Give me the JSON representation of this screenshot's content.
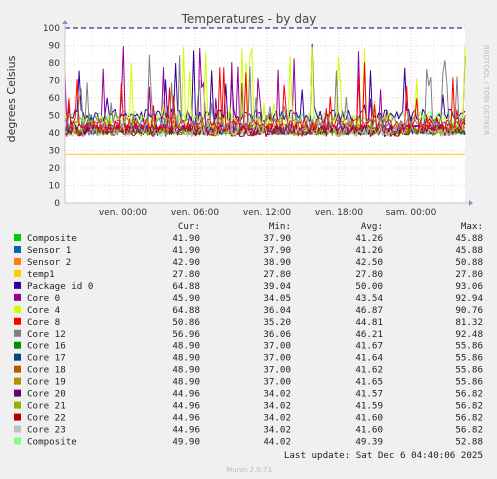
{
  "chart_data": {
    "type": "line",
    "title": "Temperatures - by day",
    "ylabel": "degrees Celsius",
    "ylim": [
      0,
      100
    ],
    "yticks": [
      "0",
      "10",
      "20",
      "30",
      "40",
      "50",
      "60",
      "70",
      "80",
      "90",
      "100"
    ],
    "xticks": [
      "ven. 00:00",
      "ven. 06:00",
      "ven. 12:00",
      "ven. 18:00",
      "sam. 00:00"
    ],
    "grid": true,
    "warning_line": 100,
    "side_label": "RRDTOOL / TOBI OETIKER",
    "legend_header": {
      "cur": "Cur:",
      "min": "Min:",
      "avg": "Avg:",
      "max": "Max:"
    },
    "series": [
      {
        "name": "Composite",
        "color": "#00cc00",
        "cur": "41.90",
        "min": "37.90",
        "avg": "41.26",
        "max": "45.88"
      },
      {
        "name": "Sensor 1",
        "color": "#0066b3",
        "cur": "41.90",
        "min": "37.90",
        "avg": "41.26",
        "max": "45.88"
      },
      {
        "name": "Sensor 2",
        "color": "#ff8000",
        "cur": "42.90",
        "min": "38.90",
        "avg": "42.50",
        "max": "50.88"
      },
      {
        "name": "temp1",
        "color": "#ffcc00",
        "cur": "27.80",
        "min": "27.80",
        "avg": "27.80",
        "max": "27.80"
      },
      {
        "name": "Package id 0",
        "color": "#330099",
        "cur": "64.88",
        "min": "39.04",
        "avg": "50.00",
        "max": "93.06"
      },
      {
        "name": "Core 0",
        "color": "#990099",
        "cur": "45.90",
        "min": "34.05",
        "avg": "43.54",
        "max": "92.94"
      },
      {
        "name": "Core 4",
        "color": "#ccff00",
        "cur": "64.88",
        "min": "36.04",
        "avg": "46.87",
        "max": "90.76"
      },
      {
        "name": "Core 8",
        "color": "#ff0000",
        "cur": "50.86",
        "min": "35.20",
        "avg": "44.81",
        "max": "81.32"
      },
      {
        "name": "Core 12",
        "color": "#808080",
        "cur": "56.96",
        "min": "36.06",
        "avg": "46.21",
        "max": "92.48"
      },
      {
        "name": "Core 16",
        "color": "#008f00",
        "cur": "48.90",
        "min": "37.00",
        "avg": "41.67",
        "max": "55.86"
      },
      {
        "name": "Core 17",
        "color": "#00487d",
        "cur": "48.90",
        "min": "37.00",
        "avg": "41.64",
        "max": "55.86"
      },
      {
        "name": "Core 18",
        "color": "#b35a00",
        "cur": "48.90",
        "min": "37.00",
        "avg": "41.62",
        "max": "55.86"
      },
      {
        "name": "Core 19",
        "color": "#b38f00",
        "cur": "48.90",
        "min": "37.00",
        "avg": "41.65",
        "max": "55.86"
      },
      {
        "name": "Core 20",
        "color": "#6b006b",
        "cur": "44.96",
        "min": "34.02",
        "avg": "41.57",
        "max": "56.82"
      },
      {
        "name": "Core 21",
        "color": "#8fb300",
        "cur": "44.96",
        "min": "34.02",
        "avg": "41.59",
        "max": "56.82"
      },
      {
        "name": "Core 22",
        "color": "#b30000",
        "cur": "44.96",
        "min": "34.02",
        "avg": "41.60",
        "max": "56.82"
      },
      {
        "name": "Core 23",
        "color": "#bebebe",
        "cur": "44.96",
        "min": "34.02",
        "avg": "41.60",
        "max": "56.82"
      },
      {
        "name": "Composite",
        "color": "#80ff80",
        "cur": "49.90",
        "min": "44.02",
        "avg": "49.39",
        "max": "52.88"
      }
    ],
    "last_update": "Last update: Sat Dec  6 04:40:06 2025",
    "footer": "Munin 2.0.73"
  }
}
